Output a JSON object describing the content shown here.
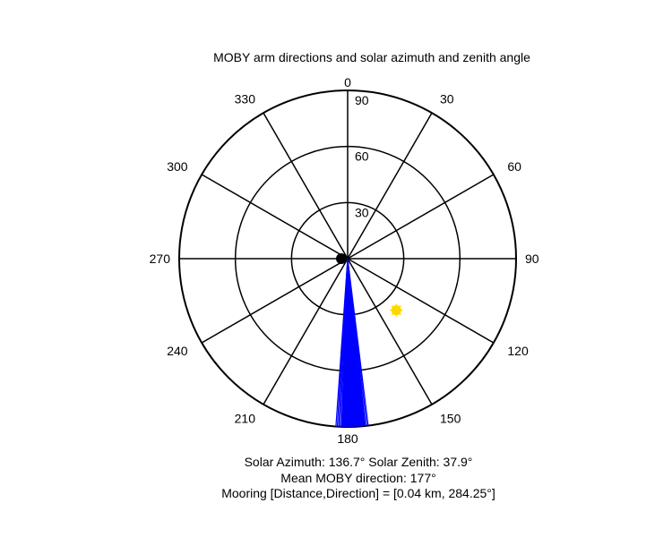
{
  "chart_data": {
    "type": "polar",
    "title": "MOBY arm directions and solar azimuth and zenith angle",
    "angle_ticks": [
      "0",
      "30",
      "60",
      "90",
      "120",
      "150",
      "180",
      "210",
      "240",
      "270",
      "300",
      "330"
    ],
    "radial_ticks": [
      "30",
      "60",
      "90"
    ],
    "radial_max": 90,
    "grid": true,
    "arm_directions_deg": {
      "min": 173,
      "max": 184,
      "mean": 177,
      "count": 24
    },
    "sun": {
      "azimuth_deg": 136.7,
      "zenith_deg": 37.9,
      "color": "#FFD700"
    },
    "colors": {
      "arms": "#0000FF",
      "grid": "#000000",
      "center_marker": "#000000"
    }
  },
  "captions": {
    "line1": "Solar Azimuth: 136.7°   Solar Zenith: 37.9°",
    "line2": "Mean MOBY direction: 177°",
    "line3": "Mooring [Distance,Direction] = [0.04 km, 284.25°]"
  }
}
